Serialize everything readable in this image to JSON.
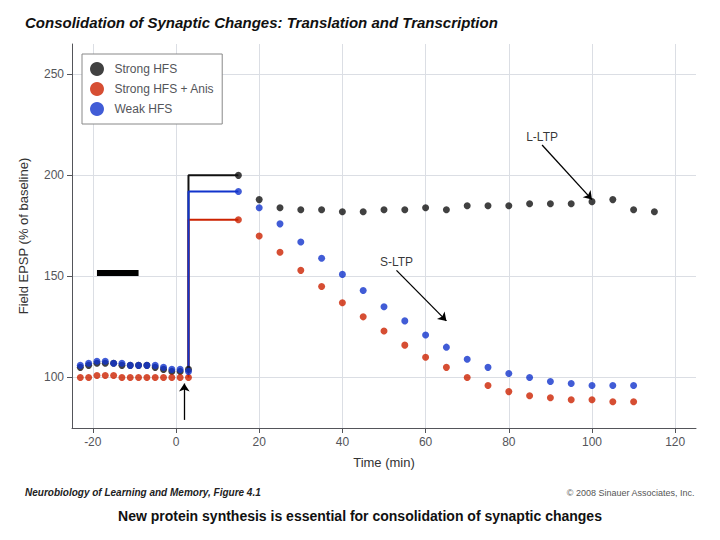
{
  "chart_data": {
    "type": "scatter",
    "title": "Consolidation of Synaptic Changes: Translation and Transcription",
    "subtitle": "New protein synthesis is essential for consolidation of synaptic changes",
    "footnote": "Neurobiology of Learning and Memory, Figure 4.1",
    "copyright": "© 2008 Sinauer Associates, Inc.",
    "xlabel": "Time (min)",
    "ylabel": "Field EPSP (% of baseline)",
    "xlim": [
      -25,
      125
    ],
    "ylim": [
      75,
      265
    ],
    "xticks": [
      -20,
      0,
      20,
      40,
      60,
      80,
      100,
      120
    ],
    "yticks": [
      100,
      150,
      200,
      250
    ],
    "grid": true,
    "legend": "upper left",
    "marker": "circle",
    "series": [
      {
        "name": "Strong HFS",
        "color": "#111111",
        "x": [
          -23,
          -21,
          -19,
          -17,
          -15,
          -13,
          -11,
          -9,
          -7,
          -5,
          -3,
          -1,
          1,
          3,
          15,
          20,
          25,
          30,
          35,
          40,
          45,
          50,
          55,
          60,
          65,
          70,
          75,
          80,
          85,
          90,
          95,
          100,
          105,
          110,
          115
        ],
        "values": [
          105,
          106,
          107,
          107,
          107,
          106,
          106,
          106,
          106,
          105,
          104,
          103,
          103,
          104,
          200,
          188,
          184,
          183,
          183,
          182,
          182,
          183,
          183,
          184,
          183,
          185,
          185,
          185,
          186,
          186,
          186,
          187,
          188,
          183,
          182
        ],
        "line_x": [
          3,
          3,
          15
        ],
        "line_y": [
          104,
          200,
          200
        ]
      },
      {
        "name": "Strong HFS + Anis",
        "color": "#cc2200",
        "x": [
          -23,
          -21,
          -19,
          -17,
          -15,
          -13,
          -11,
          -9,
          -7,
          -5,
          -3,
          -1,
          1,
          3,
          15,
          20,
          25,
          30,
          35,
          40,
          45,
          50,
          55,
          60,
          65,
          70,
          75,
          80,
          85,
          90,
          95,
          100,
          105,
          110
        ],
        "values": [
          100,
          100,
          101,
          101,
          101,
          100,
          100,
          100,
          100,
          100,
          100,
          100,
          100,
          100,
          178,
          170,
          162,
          153,
          145,
          137,
          130,
          123,
          116,
          110,
          105,
          100,
          96,
          93,
          91,
          90,
          89,
          89,
          88,
          88
        ],
        "line_x": [
          3,
          3,
          15
        ],
        "line_y": [
          100,
          178,
          178
        ]
      },
      {
        "name": "Weak HFS",
        "color": "#1133cc",
        "x": [
          -23,
          -21,
          -19,
          -17,
          -15,
          -13,
          -11,
          -9,
          -7,
          -5,
          -3,
          -1,
          1,
          3,
          15,
          20,
          25,
          30,
          35,
          40,
          45,
          50,
          55,
          60,
          65,
          70,
          75,
          80,
          85,
          90,
          95,
          100,
          105,
          110
        ],
        "values": [
          106,
          107,
          108,
          108,
          107,
          107,
          106,
          106,
          106,
          106,
          105,
          104,
          104,
          103,
          192,
          184,
          176,
          167,
          159,
          151,
          143,
          135,
          128,
          121,
          115,
          109,
          105,
          102,
          100,
          98,
          97,
          96,
          96,
          96
        ],
        "line_x": [
          3,
          3,
          15
        ],
        "line_y": [
          103,
          192,
          192
        ]
      }
    ],
    "annotations": [
      {
        "text": "L-LTP",
        "x": 88,
        "y": 215,
        "tip_x": 100,
        "tip_y": 188
      },
      {
        "text": "S-LTP",
        "x": 53,
        "y": 153,
        "tip_x": 65,
        "tip_y": 128
      }
    ],
    "arrows": [
      {
        "x": 2,
        "y_base": 79,
        "y_tip": 97
      }
    ],
    "stimulus_bar": {
      "x": [
        -19,
        -9
      ],
      "y": 152
    }
  }
}
